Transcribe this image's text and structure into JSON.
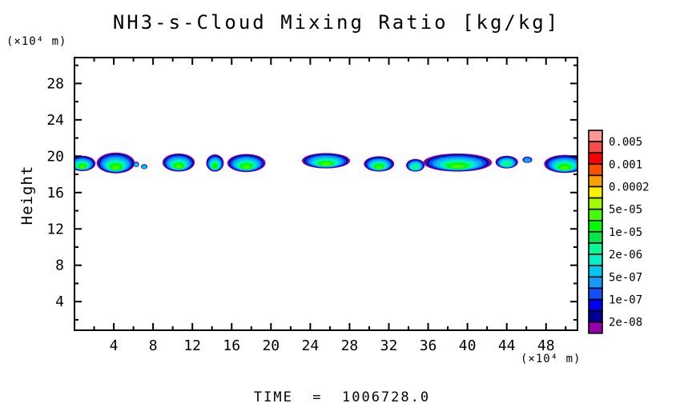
{
  "title": "NH3-s-Cloud Mixing Ratio [kg/kg]",
  "time_label": "TIME  =  1006728.0",
  "x_axis": {
    "unit": "(×10⁴ m)"
  },
  "y_axis": {
    "title": "Height",
    "unit": "(×10⁴ m)"
  },
  "chart_data": {
    "type": "heatmap",
    "title": "NH3-s-Cloud Mixing Ratio [kg/kg]",
    "xlabel": "(×10⁴ m)",
    "ylabel": "Height",
    "xlim": [
      0,
      51.2
    ],
    "ylim": [
      0.85,
      30.85
    ],
    "x_major_ticks": [
      4,
      8,
      12,
      16,
      20,
      24,
      28,
      32,
      36,
      40,
      44,
      48
    ],
    "x_minor_step": 2,
    "y_major_ticks": [
      4,
      8,
      12,
      16,
      20,
      24,
      28
    ],
    "y_minor_step": 2,
    "grid": false,
    "legend_position": "right",
    "colorbar": {
      "cell_colors": [
        "#FF9696",
        "#FA4B4B",
        "#FA0000",
        "#FA5000",
        "#FAA000",
        "#FAF000",
        "#A0FA00",
        "#46FA00",
        "#00FA00",
        "#00E846",
        "#00FA96",
        "#00F0C8",
        "#00C8F0",
        "#149BFA",
        "#1450FA",
        "#0000F0",
        "#000096",
        "#9600AA"
      ],
      "boundary_labels": [
        "0.005",
        "0.001",
        "0.0002",
        "5e-05",
        "1e-05",
        "2e-06",
        "5e-07",
        "1e-07",
        "2e-08"
      ]
    },
    "cloud_layers": [
      {
        "color": "#9600AA",
        "s": 1.0,
        "dy": 0.0
      },
      {
        "color": "#000096",
        "s": 0.92,
        "dy": 0.02
      },
      {
        "color": "#0050FA",
        "s": 0.84,
        "dy": 0.06
      },
      {
        "color": "#149BFA",
        "s": 0.73,
        "dy": 0.11
      },
      {
        "color": "#00C8F0",
        "s": 0.62,
        "dy": 0.17
      },
      {
        "color": "#00F0C8",
        "s": 0.52,
        "dy": 0.23
      },
      {
        "color": "#00FA96",
        "s": 0.43,
        "dy": 0.29
      },
      {
        "color": "#00FA00",
        "s": 0.34,
        "dy": 0.35
      },
      {
        "color": "#46FA00",
        "s": 0.2,
        "dy": 0.42
      }
    ],
    "clouds": [
      {
        "x": 0.8,
        "y": 19.2,
        "rx": 1.35,
        "ry": 0.85,
        "levels": 9
      },
      {
        "x": 4.2,
        "y": 19.25,
        "rx": 1.95,
        "ry": 1.15,
        "levels": 9
      },
      {
        "x": 6.3,
        "y": 19.1,
        "rx": 0.28,
        "ry": 0.3,
        "levels": 5
      },
      {
        "x": 7.1,
        "y": 18.85,
        "rx": 0.33,
        "ry": 0.28,
        "levels": 5
      },
      {
        "x": 10.6,
        "y": 19.3,
        "rx": 1.65,
        "ry": 1.0,
        "levels": 9
      },
      {
        "x": 14.3,
        "y": 19.25,
        "rx": 0.9,
        "ry": 0.95,
        "levels": 8
      },
      {
        "x": 17.5,
        "y": 19.25,
        "rx": 1.95,
        "ry": 1.0,
        "levels": 9
      },
      {
        "x": 25.6,
        "y": 19.5,
        "rx": 2.45,
        "ry": 0.85,
        "levels": 9
      },
      {
        "x": 31.0,
        "y": 19.15,
        "rx": 1.55,
        "ry": 0.85,
        "levels": 9
      },
      {
        "x": 34.7,
        "y": 19.0,
        "rx": 0.95,
        "ry": 0.7,
        "levels": 7
      },
      {
        "x": 39.0,
        "y": 19.3,
        "rx": 3.5,
        "ry": 1.0,
        "levels": 9
      },
      {
        "x": 44.0,
        "y": 19.35,
        "rx": 1.15,
        "ry": 0.7,
        "levels": 7
      },
      {
        "x": 46.1,
        "y": 19.6,
        "rx": 0.5,
        "ry": 0.35,
        "levels": 4
      },
      {
        "x": 49.9,
        "y": 19.15,
        "rx": 2.1,
        "ry": 1.0,
        "levels": 9
      }
    ]
  }
}
